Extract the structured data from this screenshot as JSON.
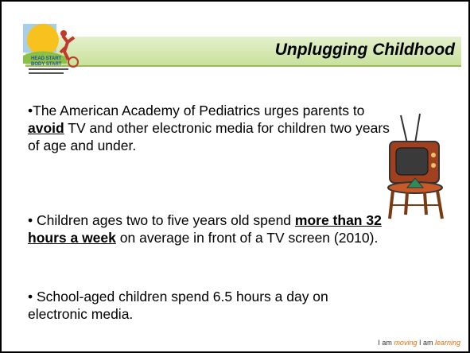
{
  "slide": {
    "title": "Unplugging Childhood",
    "bullets": [
      {
        "parts": [
          "•The American Academy of Pediatrics urges parents to ",
          "avoid",
          " TV and other electronic media for children two years of age and under."
        ]
      },
      {
        "parts": [
          "• Children ages two to five years old spend ",
          "more than 32 hours a week",
          " on average in front of a TV screen (2010)."
        ]
      },
      {
        "parts": [
          "• School-aged children spend 6.5 hours a day on electronic media."
        ]
      }
    ],
    "footer": [
      "I am ",
      "moving",
      " I am ",
      "learning"
    ]
  }
}
